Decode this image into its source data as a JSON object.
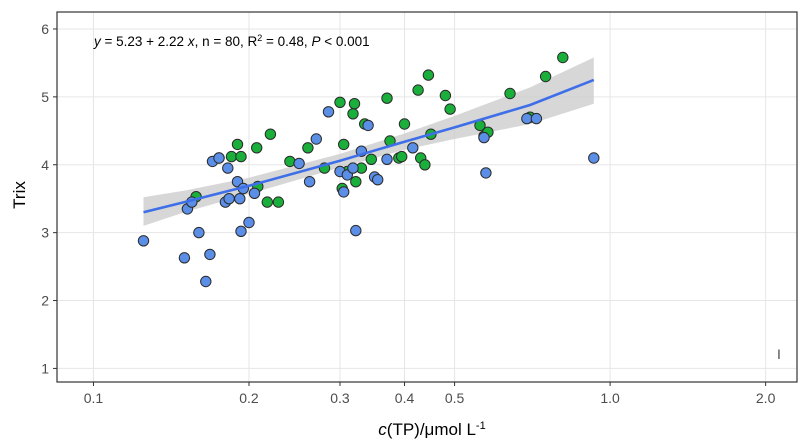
{
  "chart_data": {
    "type": "scatter",
    "x_scale": "log",
    "xlim": [
      0.085,
      2.3
    ],
    "ylim": [
      0.8,
      6.25
    ],
    "x_ticks": [
      0.1,
      0.2,
      0.3,
      0.4,
      0.5,
      1.0,
      2.0
    ],
    "x_tick_labels": [
      "0.1",
      "0.2",
      "0.3",
      "0.4",
      "0.5",
      "1.0",
      "2.0"
    ],
    "y_ticks": [
      1,
      2,
      3,
      4,
      5,
      6
    ],
    "y_tick_labels": [
      "1",
      "2",
      "3",
      "4",
      "5",
      "6"
    ],
    "xlabel": {
      "prefix": "c",
      "middle": "(TP)/μmol L",
      "sup": "-1"
    },
    "ylabel": "Trix",
    "grid": true,
    "annotation": {
      "y": "y",
      "eq_rest": " = 5.23 + 2.22 ",
      "x": "x",
      "n_part": ", n = 80, R",
      "r_sup": "2",
      "p_part": " = 0.48, ",
      "P": "P",
      "p_end": " < 0.001"
    },
    "corner_mark": "I",
    "colors": {
      "green": "#1aae3a",
      "blue": "#5b8ee6",
      "line": "#3f6fe8",
      "band": "#c9c9c9",
      "panel_border": "#333333",
      "grid": "#e6e6e6"
    },
    "regression": {
      "x": [
        0.125,
        0.15,
        0.2,
        0.3,
        0.4,
        0.5,
        0.7,
        0.93
      ],
      "y": [
        3.3,
        3.45,
        3.69,
        4.06,
        4.34,
        4.55,
        4.88,
        5.25
      ],
      "lower": [
        3.1,
        3.3,
        3.57,
        3.96,
        4.22,
        4.38,
        4.6,
        4.9
      ],
      "upper": [
        3.52,
        3.62,
        3.81,
        4.16,
        4.46,
        4.72,
        5.14,
        5.58
      ]
    },
    "series": [
      {
        "color_key": "green",
        "points": [
          [
            0.158,
            3.53
          ],
          [
            0.175,
            4.1
          ],
          [
            0.185,
            4.12
          ],
          [
            0.19,
            4.3
          ],
          [
            0.193,
            4.12
          ],
          [
            0.207,
            4.25
          ],
          [
            0.208,
            3.68
          ],
          [
            0.217,
            3.45
          ],
          [
            0.22,
            4.45
          ],
          [
            0.228,
            3.45
          ],
          [
            0.24,
            4.05
          ],
          [
            0.26,
            4.25
          ],
          [
            0.28,
            3.95
          ],
          [
            0.3,
            4.92
          ],
          [
            0.303,
            3.65
          ],
          [
            0.305,
            4.3
          ],
          [
            0.31,
            3.9
          ],
          [
            0.318,
            4.75
          ],
          [
            0.32,
            4.9
          ],
          [
            0.322,
            3.75
          ],
          [
            0.33,
            3.95
          ],
          [
            0.335,
            4.6
          ],
          [
            0.345,
            4.08
          ],
          [
            0.37,
            4.98
          ],
          [
            0.375,
            4.35
          ],
          [
            0.39,
            4.1
          ],
          [
            0.395,
            4.12
          ],
          [
            0.4,
            4.6
          ],
          [
            0.425,
            5.1
          ],
          [
            0.43,
            4.1
          ],
          [
            0.438,
            4.0
          ],
          [
            0.445,
            5.32
          ],
          [
            0.45,
            4.45
          ],
          [
            0.48,
            5.02
          ],
          [
            0.49,
            4.82
          ],
          [
            0.56,
            4.58
          ],
          [
            0.57,
            4.42
          ],
          [
            0.58,
            4.48
          ],
          [
            0.64,
            5.05
          ],
          [
            0.7,
            4.7
          ],
          [
            0.75,
            5.3
          ],
          [
            0.81,
            5.58
          ]
        ]
      },
      {
        "color_key": "blue",
        "points": [
          [
            0.125,
            2.88
          ],
          [
            0.15,
            2.63
          ],
          [
            0.152,
            3.35
          ],
          [
            0.155,
            3.45
          ],
          [
            0.16,
            3.0
          ],
          [
            0.165,
            2.28
          ],
          [
            0.168,
            2.68
          ],
          [
            0.17,
            4.05
          ],
          [
            0.175,
            4.1
          ],
          [
            0.18,
            3.45
          ],
          [
            0.182,
            3.95
          ],
          [
            0.183,
            3.5
          ],
          [
            0.19,
            3.75
          ],
          [
            0.192,
            3.5
          ],
          [
            0.193,
            3.02
          ],
          [
            0.195,
            3.65
          ],
          [
            0.2,
            3.15
          ],
          [
            0.205,
            3.58
          ],
          [
            0.25,
            4.02
          ],
          [
            0.262,
            3.75
          ],
          [
            0.27,
            4.38
          ],
          [
            0.285,
            4.78
          ],
          [
            0.3,
            3.9
          ],
          [
            0.305,
            3.6
          ],
          [
            0.31,
            3.85
          ],
          [
            0.318,
            3.95
          ],
          [
            0.322,
            3.03
          ],
          [
            0.33,
            4.2
          ],
          [
            0.34,
            4.58
          ],
          [
            0.35,
            3.82
          ],
          [
            0.355,
            3.78
          ],
          [
            0.37,
            4.08
          ],
          [
            0.415,
            4.25
          ],
          [
            0.57,
            4.4
          ],
          [
            0.575,
            3.88
          ],
          [
            0.69,
            4.68
          ],
          [
            0.72,
            4.68
          ],
          [
            0.93,
            4.1
          ]
        ]
      }
    ]
  }
}
